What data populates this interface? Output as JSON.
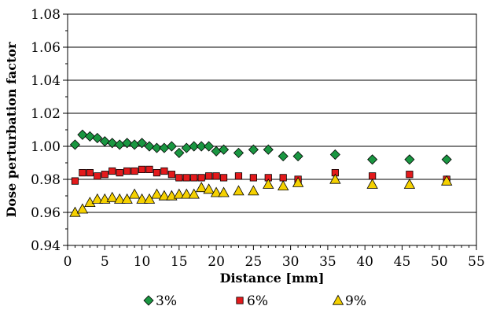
{
  "chart_data": {
    "type": "scatter",
    "xlabel": "Distance [mm]",
    "ylabel": "Dose perturbation factor",
    "xlim": [
      0,
      55
    ],
    "ylim": [
      0.94,
      1.08
    ],
    "x_ticks": [
      "0",
      "5",
      "10",
      "15",
      "20",
      "25",
      "30",
      "35",
      "40",
      "45",
      "50",
      "55"
    ],
    "y_ticks": [
      "0.94",
      "0.96",
      "0.98",
      "1.00",
      "1.02",
      "1.04",
      "1.06",
      "1.08"
    ],
    "grid": "horizontal",
    "legend_position": "bottom",
    "series": [
      {
        "name": "3%",
        "marker": "diamond",
        "color": "#1a9641",
        "points": [
          [
            1,
            1.001
          ],
          [
            2,
            1.007
          ],
          [
            3,
            1.006
          ],
          [
            4,
            1.005
          ],
          [
            5,
            1.003
          ],
          [
            6,
            1.002
          ],
          [
            7,
            1.001
          ],
          [
            8,
            1.002
          ],
          [
            9,
            1.001
          ],
          [
            10,
            1.002
          ],
          [
            11,
            1.0
          ],
          [
            12,
            0.999
          ],
          [
            13,
            0.999
          ],
          [
            14,
            1.0
          ],
          [
            15,
            0.996
          ],
          [
            16,
            0.999
          ],
          [
            17,
            1.0
          ],
          [
            18,
            1.0
          ],
          [
            19,
            1.0
          ],
          [
            20,
            0.997
          ],
          [
            21,
            0.998
          ],
          [
            23,
            0.996
          ],
          [
            25,
            0.998
          ],
          [
            27,
            0.998
          ],
          [
            29,
            0.994
          ],
          [
            31,
            0.994
          ],
          [
            36,
            0.995
          ],
          [
            41,
            0.992
          ],
          [
            46,
            0.992
          ],
          [
            51,
            0.992
          ]
        ]
      },
      {
        "name": "6%",
        "marker": "square",
        "color": "#e31a1c",
        "points": [
          [
            1,
            0.979
          ],
          [
            2,
            0.984
          ],
          [
            3,
            0.984
          ],
          [
            4,
            0.982
          ],
          [
            5,
            0.983
          ],
          [
            6,
            0.985
          ],
          [
            7,
            0.984
          ],
          [
            8,
            0.985
          ],
          [
            9,
            0.985
          ],
          [
            10,
            0.986
          ],
          [
            11,
            0.986
          ],
          [
            12,
            0.984
          ],
          [
            13,
            0.985
          ],
          [
            14,
            0.983
          ],
          [
            15,
            0.981
          ],
          [
            16,
            0.981
          ],
          [
            17,
            0.981
          ],
          [
            18,
            0.981
          ],
          [
            19,
            0.982
          ],
          [
            20,
            0.982
          ],
          [
            21,
            0.981
          ],
          [
            23,
            0.982
          ],
          [
            25,
            0.981
          ],
          [
            27,
            0.981
          ],
          [
            29,
            0.981
          ],
          [
            31,
            0.98
          ],
          [
            36,
            0.984
          ],
          [
            41,
            0.982
          ],
          [
            46,
            0.983
          ],
          [
            51,
            0.98
          ]
        ]
      },
      {
        "name": "9%",
        "marker": "triangle",
        "color": "#f5d100",
        "points": [
          [
            1,
            0.96
          ],
          [
            2,
            0.962
          ],
          [
            3,
            0.966
          ],
          [
            4,
            0.968
          ],
          [
            5,
            0.968
          ],
          [
            6,
            0.969
          ],
          [
            7,
            0.968
          ],
          [
            8,
            0.968
          ],
          [
            9,
            0.971
          ],
          [
            10,
            0.968
          ],
          [
            11,
            0.968
          ],
          [
            12,
            0.971
          ],
          [
            13,
            0.97
          ],
          [
            14,
            0.97
          ],
          [
            15,
            0.971
          ],
          [
            16,
            0.971
          ],
          [
            17,
            0.971
          ],
          [
            18,
            0.975
          ],
          [
            19,
            0.974
          ],
          [
            20,
            0.972
          ],
          [
            21,
            0.972
          ],
          [
            23,
            0.973
          ],
          [
            25,
            0.973
          ],
          [
            27,
            0.977
          ],
          [
            29,
            0.976
          ],
          [
            31,
            0.978
          ],
          [
            36,
            0.98
          ],
          [
            41,
            0.977
          ],
          [
            46,
            0.977
          ],
          [
            51,
            0.979
          ]
        ]
      }
    ]
  }
}
